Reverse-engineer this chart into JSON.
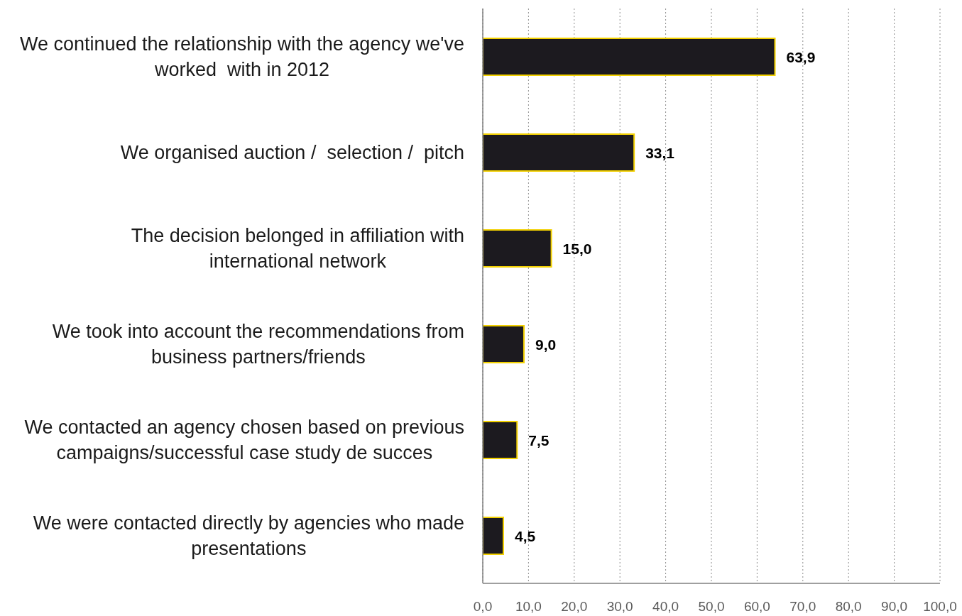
{
  "chart_data": {
    "type": "bar",
    "orientation": "horizontal",
    "categories": [
      "We continued the relationship with the agency we've worked  with in 2012",
      "We organised auction /  selection /  pitch",
      "The decision belonged in affiliation with international network",
      "We took into account the recommendations from business partners/friends",
      "We contacted an agency chosen based on previous campaigns/successful case study de succes",
      "We were contacted directly by agencies who made presentations"
    ],
    "values": [
      63.9,
      33.1,
      15.0,
      9.0,
      7.5,
      4.5
    ],
    "value_labels": [
      "63,9",
      "33,1",
      "15,0",
      "9,0",
      "7,5",
      "4,5"
    ],
    "color": "#1c1a1f",
    "xlim": [
      0,
      100
    ],
    "xticks": [
      {
        "value": 0,
        "label": "0,0"
      },
      {
        "value": 10,
        "label": "10,0"
      },
      {
        "value": 20,
        "label": "20,0"
      },
      {
        "value": 30,
        "label": "30,0"
      },
      {
        "value": 40,
        "label": "40,0"
      },
      {
        "value": 50,
        "label": "50,0"
      },
      {
        "value": 60,
        "label": "60,0"
      },
      {
        "value": 70,
        "label": "70,0"
      },
      {
        "value": 80,
        "label": "80,0"
      },
      {
        "value": 90,
        "label": "90,0"
      },
      {
        "value": 100,
        "label": "100,0"
      }
    ],
    "grid": "x"
  }
}
